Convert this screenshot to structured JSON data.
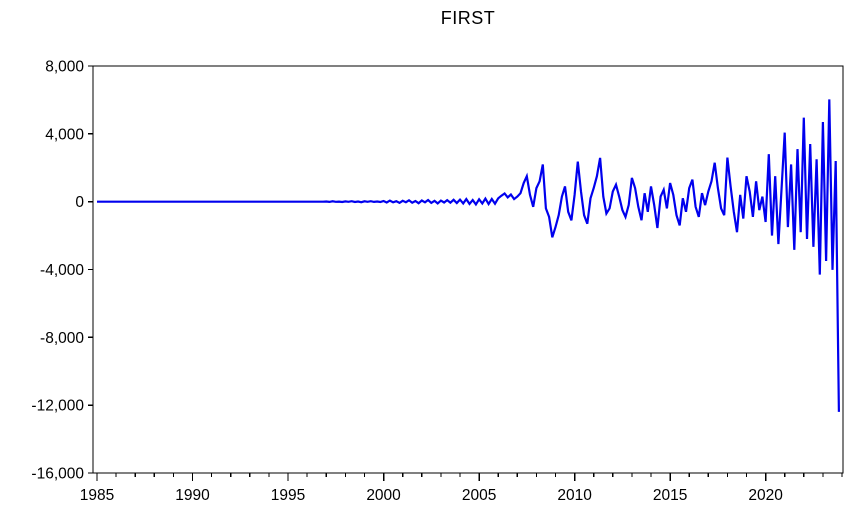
{
  "page": {
    "background": "#FFFFFF"
  },
  "chart_data": {
    "type": "line",
    "title": "FIRST",
    "grid": false,
    "legend": "none",
    "frame_color": "#000000",
    "text_color": "#000000",
    "xlim": [
      1984.79,
      2024.05
    ],
    "ylim": [
      -16000,
      8000
    ],
    "y_ticks": [
      {
        "value": 8000,
        "label": "8,000"
      },
      {
        "value": 4000,
        "label": "4,000"
      },
      {
        "value": 0,
        "label": "0"
      },
      {
        "value": -4000,
        "label": "-4,000"
      },
      {
        "value": -8000,
        "label": "-8,000"
      },
      {
        "value": -12000,
        "label": "-12,000"
      },
      {
        "value": -16000,
        "label": "-16,000"
      }
    ],
    "x_ticks_major": [
      {
        "value": 1985,
        "label": "1985"
      },
      {
        "value": 1990,
        "label": "1990"
      },
      {
        "value": 1995,
        "label": "1995"
      },
      {
        "value": 2000,
        "label": "2000"
      },
      {
        "value": 2005,
        "label": "2005"
      },
      {
        "value": 2010,
        "label": "2010"
      },
      {
        "value": 2015,
        "label": "2015"
      },
      {
        "value": 2020,
        "label": "2020"
      }
    ],
    "x_ticks_minor": {
      "from": 1985,
      "to": 2024,
      "step": 1
    },
    "series": [
      {
        "name": "FIRST",
        "color": "#0000EE",
        "x_start": 1985.0,
        "x_step": 0.1666667,
        "values": [
          0,
          0,
          0,
          0,
          0,
          0,
          0,
          0,
          0,
          0,
          0,
          0,
          0,
          0,
          0,
          0,
          0,
          0,
          0,
          0,
          0,
          0,
          0,
          0,
          0,
          0,
          0,
          0,
          0,
          0,
          0,
          0,
          0,
          0,
          0,
          0,
          0,
          0,
          0,
          0,
          0,
          0,
          0,
          0,
          0,
          0,
          0,
          0,
          0,
          0,
          0,
          0,
          0,
          0,
          0,
          0,
          0,
          0,
          0,
          0,
          0,
          0,
          0,
          0,
          0,
          0,
          0,
          0,
          0,
          0,
          0,
          0,
          10,
          -15,
          20,
          -10,
          5,
          -20,
          15,
          -5,
          25,
          -20,
          10,
          -30,
          20,
          -10,
          30,
          -15,
          10,
          -20,
          40,
          -50,
          60,
          -40,
          30,
          -70,
          50,
          -30,
          80,
          -60,
          40,
          -90,
          70,
          -40,
          100,
          -70,
          50,
          -100,
          60,
          -50,
          90,
          -60,
          110,
          -80,
          120,
          -100,
          150,
          -130,
          100,
          -160,
          140,
          -110,
          180,
          -140,
          160,
          -120,
          200,
          350,
          480,
          250,
          420,
          150,
          300,
          500,
          1100,
          1500,
          400,
          -300,
          800,
          1200,
          2200,
          -400,
          -900,
          -2100,
          -1500,
          -800,
          300,
          900,
          -600,
          -1100,
          400,
          2360,
          600,
          -800,
          -1300,
          200,
          800,
          1500,
          2580,
          300,
          -700,
          -400,
          600,
          1000,
          300,
          -500,
          -900,
          -200,
          1400,
          800,
          -300,
          -1100,
          500,
          -600,
          900,
          -200,
          -1550,
          300,
          700,
          -400,
          1100,
          400,
          -800,
          -1400,
          200,
          -600,
          800,
          1300,
          -300,
          -900,
          500,
          -200,
          600,
          1200,
          2300,
          800,
          -400,
          -800,
          2600,
          900,
          -600,
          -1800,
          400,
          -1000,
          1500,
          600,
          -900,
          1200,
          -500,
          300,
          -1200,
          2800,
          -2000,
          1500,
          -2500,
          800,
          4070,
          -1500,
          2200,
          -2840,
          3100,
          -1800,
          4960,
          -2200,
          3400,
          -2660,
          2500,
          -4300,
          4700,
          -3500,
          6030,
          -4020,
          2400,
          -12400
        ]
      }
    ]
  }
}
